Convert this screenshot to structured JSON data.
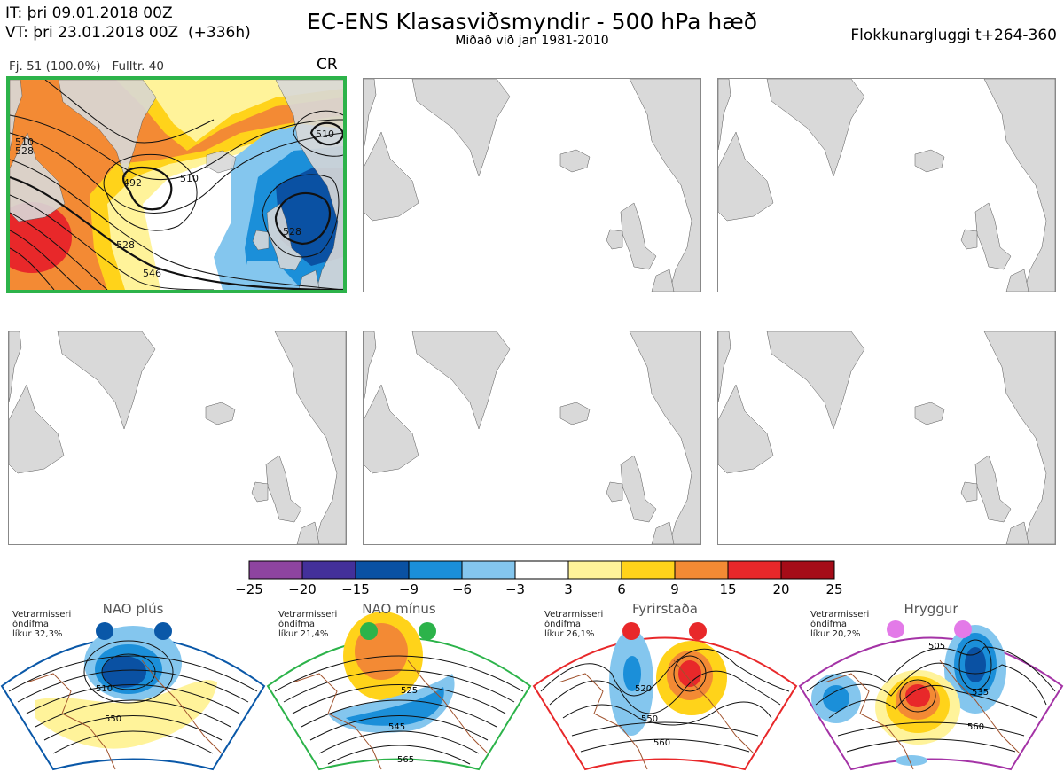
{
  "header": {
    "it_line": "IT: þri 09.01.2018 00Z",
    "vt_line": "VT: þri 23.01.2018 00Z  (+336h)",
    "title": "EC-ENS Klasasviðsmyndir - 500 hPa hæð",
    "subtitle": "Miðað við jan 1981-2010",
    "window": "Flokkunargluggi t+264-360"
  },
  "panel1": {
    "members": "Fj. 51 (100.0%)",
    "control": "Fulltr. 40",
    "regime": "CR",
    "contour_labels": [
      "528",
      "510",
      "492",
      "510",
      "528",
      "528",
      "546",
      "510"
    ],
    "border_color": "#2db34a"
  },
  "colorbar": {
    "ticks": [
      "−25",
      "−20",
      "−15",
      "−9",
      "−6",
      "−3",
      "3",
      "6",
      "9",
      "15",
      "20",
      "25"
    ],
    "colors": [
      "#8e44a0",
      "#43309a",
      "#0a51a3",
      "#1b8fd9",
      "#84c6ee",
      "#ffffff",
      "#fff39a",
      "#ffd31a",
      "#f38a34",
      "#e8282a",
      "#a50c18"
    ]
  },
  "regimes": [
    {
      "name": "NAO plús",
      "note1": "Vetrarmisseri",
      "note2": "óndífma",
      "note3": "líkur 32,3%",
      "color": "#0a58a8",
      "labels": [
        "510",
        "550"
      ]
    },
    {
      "name": "NAO mínus",
      "note1": "Vetrarmisseri",
      "note2": "óndífma",
      "note3": "líkur 21,4%",
      "color": "#2cb34a",
      "labels": [
        "525",
        "545",
        "565"
      ]
    },
    {
      "name": "Fyrirstaða",
      "note1": "Vetrarmisseri",
      "note2": "óndífma",
      "note3": "líkur 26,1%",
      "color": "#e8282a",
      "labels": [
        "520",
        "550",
        "560"
      ]
    },
    {
      "name": "Hryggur",
      "note1": "Vetrarmisseri",
      "note2": "óndífma",
      "note3": "líkur 20,2%",
      "color": "#a433a6",
      "labels": [
        "505",
        "535",
        "560"
      ]
    }
  ]
}
